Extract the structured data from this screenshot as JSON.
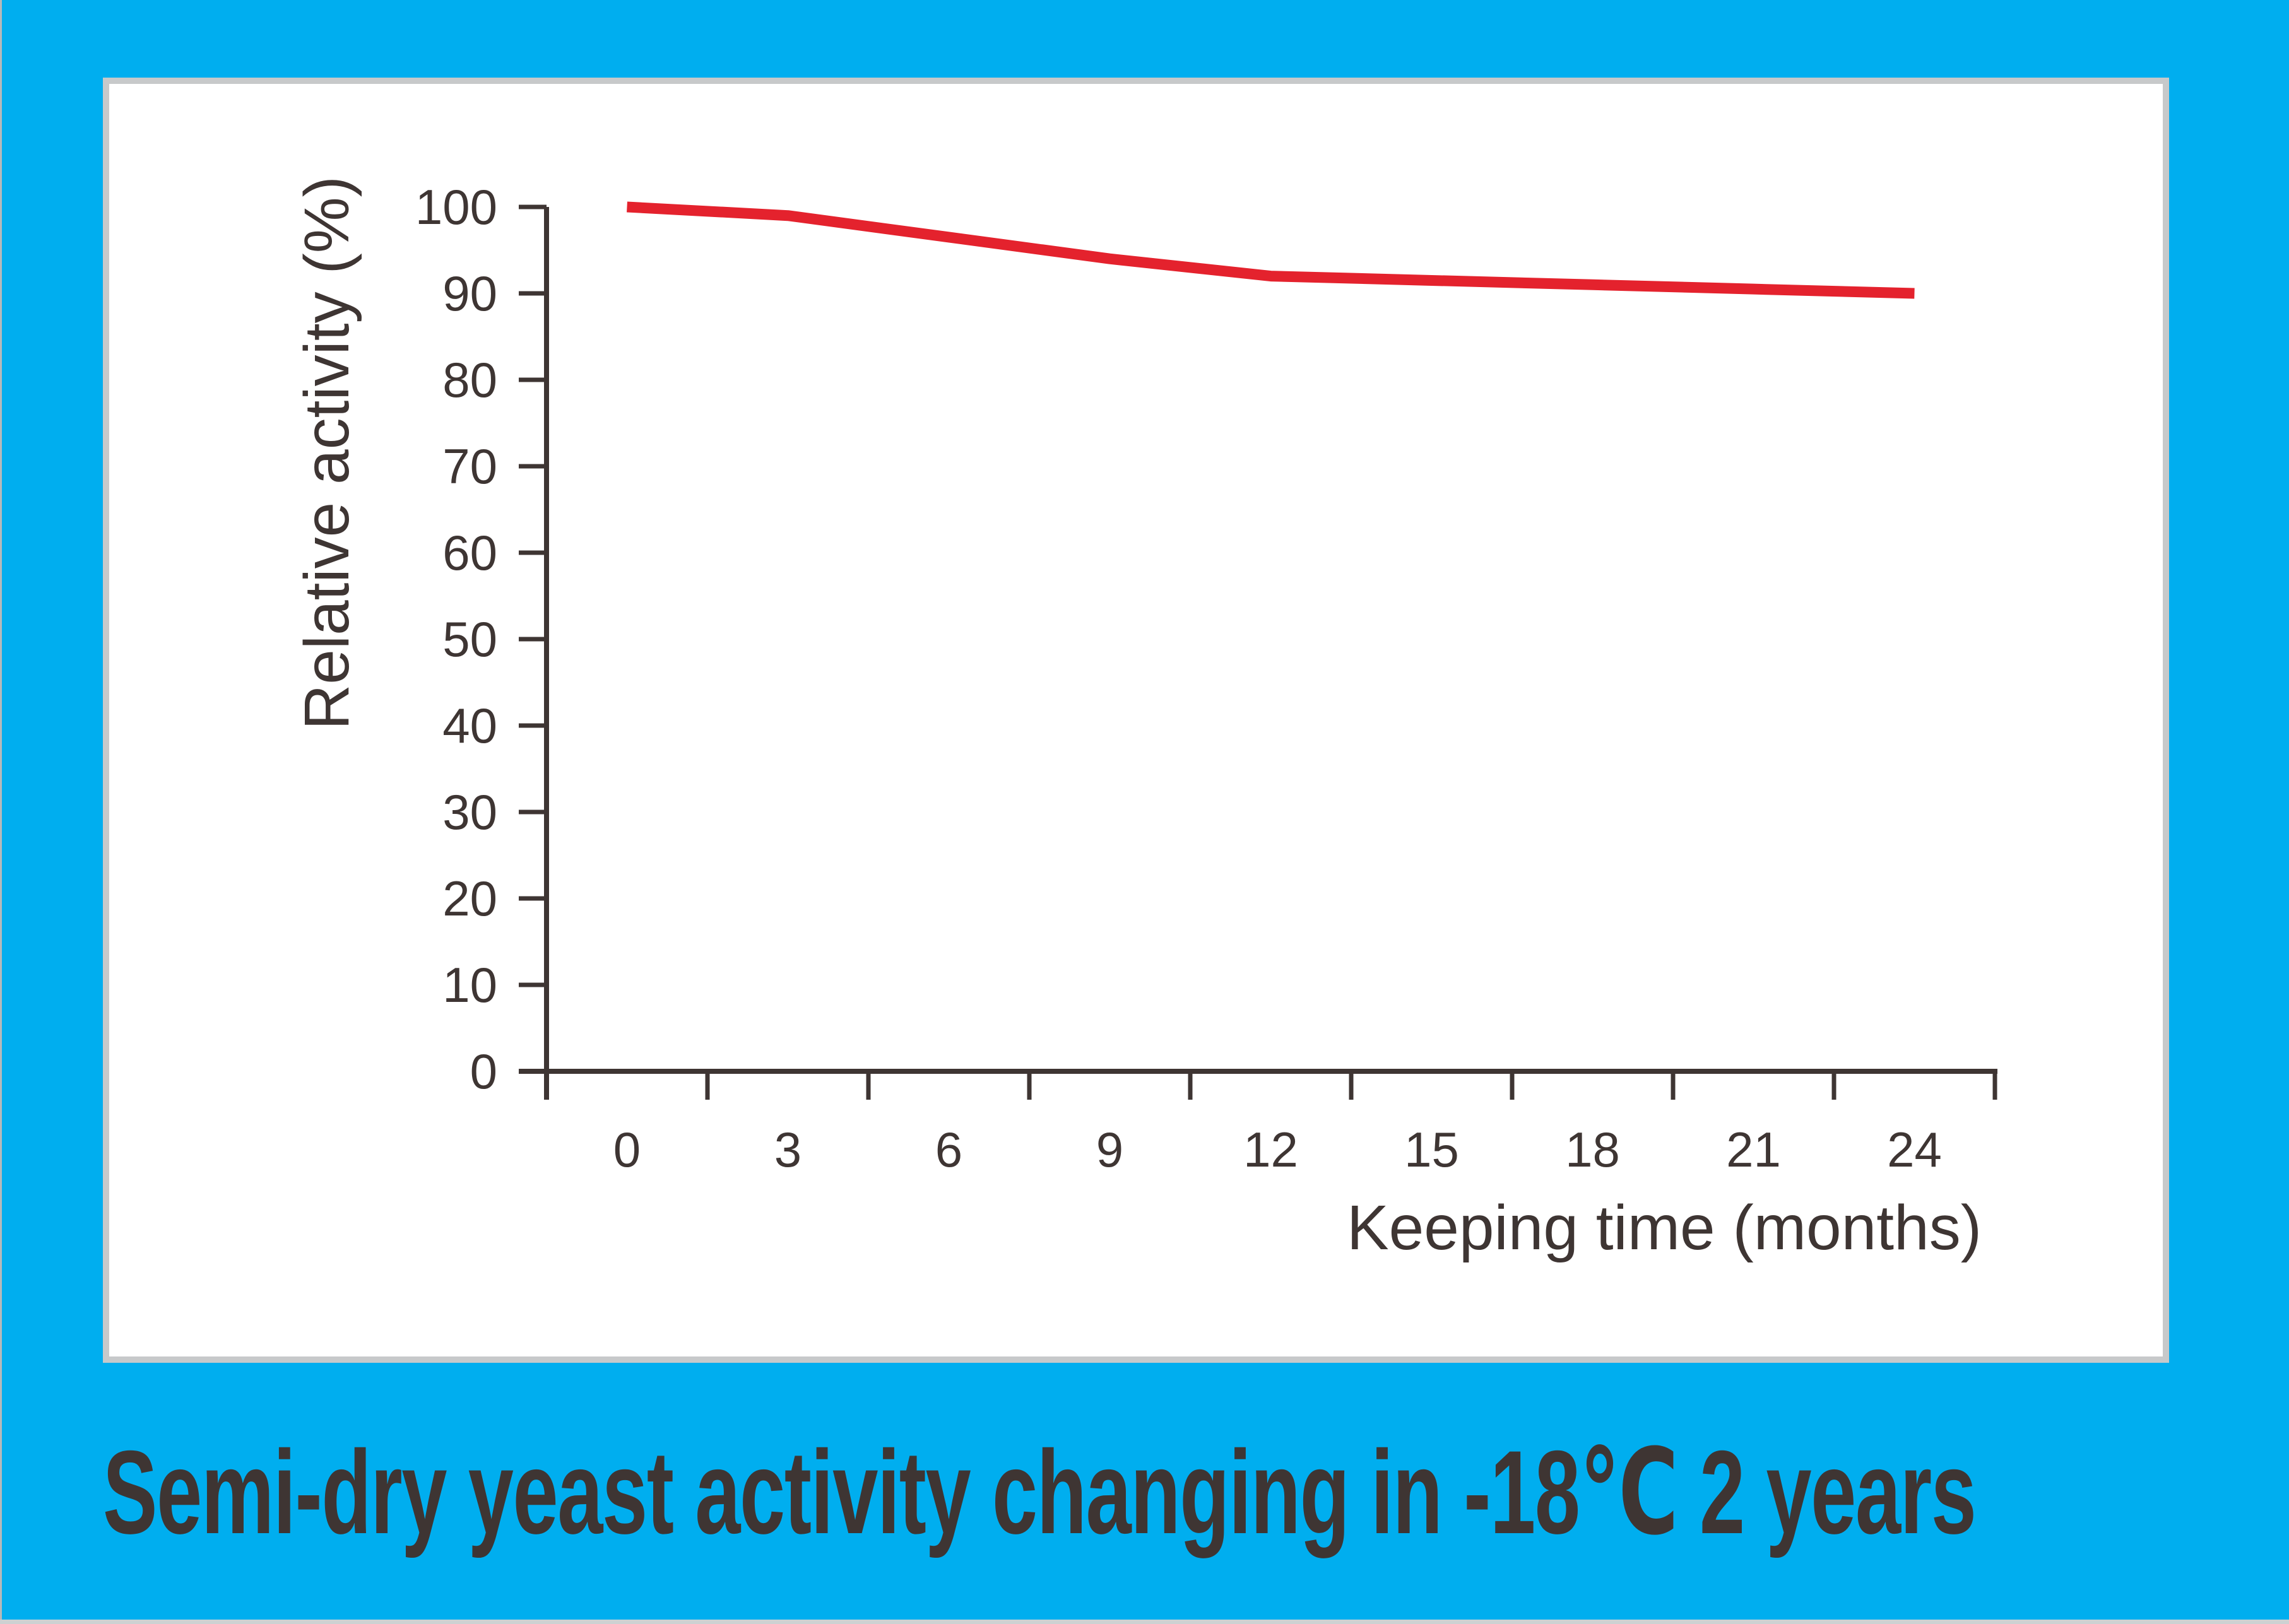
{
  "page": {
    "background_color": "#00aeef",
    "panel_fill": "#ffffff",
    "panel_border_color": "#c7c9ca",
    "edge_left_color": "#b5b9ba",
    "edge_bottom_color": "#cdd1d2"
  },
  "caption": {
    "text": "Semi-dry yeast activity changing in -18℃ 2 years",
    "color": "#3e3533"
  },
  "chart_data": {
    "type": "line",
    "x": [
      0,
      3,
      6,
      9,
      12,
      15,
      18,
      21,
      24
    ],
    "series": [
      {
        "name": "Relative activity",
        "color": "#e4222d",
        "values": [
          100,
          99,
          96.5,
          94,
          92,
          91.5,
          91,
          90.5,
          90
        ]
      }
    ],
    "title": "Semi-dry yeast activity changing in -18℃ 2 years",
    "xlabel": "Keeping time (months)",
    "ylabel": "Relative activity (%)",
    "ylim": [
      0,
      100
    ],
    "yticks": [
      0,
      10,
      20,
      30,
      40,
      50,
      60,
      70,
      80,
      90,
      100
    ],
    "xticks": [
      0,
      3,
      6,
      9,
      12,
      15,
      18,
      21,
      24
    ],
    "grid": false,
    "legend": "none",
    "markers": "none",
    "axis_color": "#3e3533"
  }
}
